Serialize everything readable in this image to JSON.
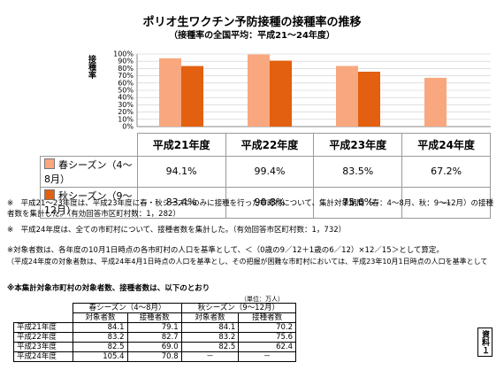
{
  "chart_data": {
    "type": "bar",
    "title": "ポリオ生ワクチン予防接種の接種率の推移",
    "subtitle": "（接種率の全国平均：平成21～24年度）",
    "y_label": "接種率",
    "categories": [
      "平成21年度",
      "平成22年度",
      "平成23年度",
      "平成24年度"
    ],
    "series": [
      {
        "name": "春シーズン（4～8月）",
        "color": "#f9a77f",
        "values": [
          94.1,
          99.4,
          83.5,
          67.2
        ],
        "value_labels": [
          "94.1%",
          "99.4%",
          "83.5%",
          "67.2%"
        ]
      },
      {
        "name": "秋シーズン（9～12月）",
        "color": "#e2600f",
        "values": [
          83.4,
          90.8,
          75.6,
          null
        ],
        "value_labels": [
          "83.4%",
          "90.8%",
          "75.6%",
          "—"
        ]
      }
    ],
    "ylim": [
      0,
      100
    ],
    "yticks": [
      {
        "value": 0,
        "label": "0%"
      },
      {
        "value": 10,
        "label": "10%"
      },
      {
        "value": 20,
        "label": "20%"
      },
      {
        "value": 30,
        "label": "30%"
      },
      {
        "value": 40,
        "label": "40%"
      },
      {
        "value": 50,
        "label": "50%"
      },
      {
        "value": 60,
        "label": "60%"
      },
      {
        "value": 70,
        "label": "70%"
      },
      {
        "value": 80,
        "label": "80%"
      },
      {
        "value": 90,
        "label": "90%"
      },
      {
        "value": 100,
        "label": "100%"
      }
    ],
    "grid": true
  },
  "notes": [
    "※　平成21～23年度は、平成23年度に春・秋シーズンのみに接種を行った市町村について、集計対象期間（春：4～8月、秋：9～12月）の接種者数を集計した。（有効回答市区町村数：1，282）",
    "※　平成24年度は、全ての市町村について、接種者数を集計した。（有効回答市区町村数：1，732）",
    "※対象者数は、各年度の10月1日時点の各市町村の人口を基準として、＜（0歳の9／12＋1歳の6／12）×12／15＞として算定。",
    "（平成24年度の対象者数は、平成24年4月1日時点の人口を基準とし、その把握が困難な市町村においては、平成23年10月1日時点の人口を基準として",
    "※本集計対象市町村の対象者数、接種者数は、以下のとおり"
  ],
  "table": {
    "unit": "（単位：万人）",
    "groups": [
      "春シーズン（4～8月）",
      "秋シーズン（9～12月）"
    ],
    "columns": [
      "対象者数",
      "接種者数",
      "対象者数",
      "接種者数"
    ],
    "rows": [
      [
        "平成21年度",
        "84.1",
        "79.1",
        "84.1",
        "70.2"
      ],
      [
        "平成22年度",
        "83.2",
        "82.7",
        "83.2",
        "75.6"
      ],
      [
        "平成23年度",
        "82.5",
        "69.0",
        "82.5",
        "62.4"
      ],
      [
        "平成24年度",
        "105.4",
        "70.8",
        "－",
        "－"
      ]
    ]
  },
  "side_label": "資料１"
}
